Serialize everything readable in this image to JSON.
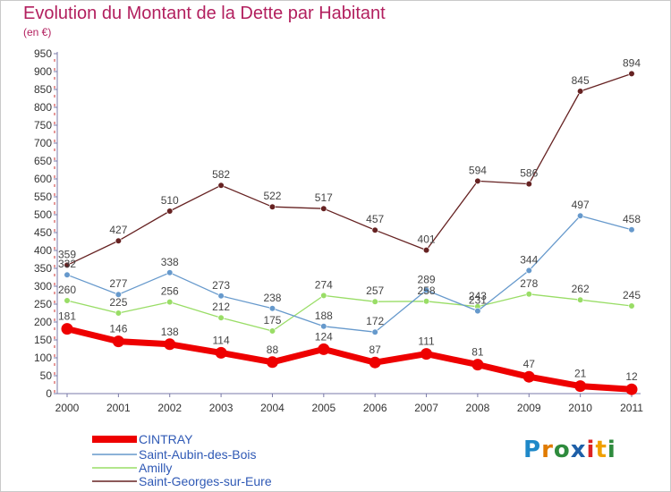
{
  "chart_data": {
    "type": "line",
    "title": "Evolution du Montant de la Dette par Habitant",
    "subtitle": "(en €)",
    "x": [
      "2000",
      "2001",
      "2002",
      "2003",
      "2004",
      "2005",
      "2006",
      "2007",
      "2008",
      "2009",
      "2010",
      "2011"
    ],
    "ylim": [
      0,
      950
    ],
    "yticks": [
      0,
      50,
      100,
      150,
      200,
      250,
      300,
      350,
      400,
      450,
      500,
      550,
      600,
      650,
      700,
      750,
      800,
      850,
      900,
      950
    ],
    "grid": false,
    "legend_position": "bottom-left",
    "series": [
      {
        "name": "CINTRAY",
        "color": "#ee0000",
        "values": [
          181,
          146,
          138,
          114,
          88,
          124,
          87,
          111,
          81,
          47,
          21,
          12
        ]
      },
      {
        "name": "Saint-Aubin-des-Bois",
        "color": "#6699cc",
        "values": [
          332,
          277,
          338,
          273,
          238,
          188,
          172,
          289,
          231,
          344,
          497,
          458
        ]
      },
      {
        "name": "Amilly",
        "color": "#99dd66",
        "values": [
          260,
          225,
          256,
          212,
          175,
          274,
          257,
          258,
          243,
          278,
          262,
          245
        ]
      },
      {
        "name": "Saint-Georges-sur-Eure",
        "color": "#662222",
        "values": [
          359,
          427,
          510,
          582,
          522,
          517,
          457,
          401,
          594,
          586,
          845,
          894
        ]
      }
    ]
  },
  "brand": {
    "letters": [
      "P",
      "r",
      "o",
      "x",
      "i",
      "t",
      "i"
    ],
    "colors": [
      "#1e88c8",
      "#e07b00",
      "#2e8b3d",
      "#1e5fa8",
      "#dd2222",
      "#f0a000",
      "#2e8b3d"
    ]
  }
}
